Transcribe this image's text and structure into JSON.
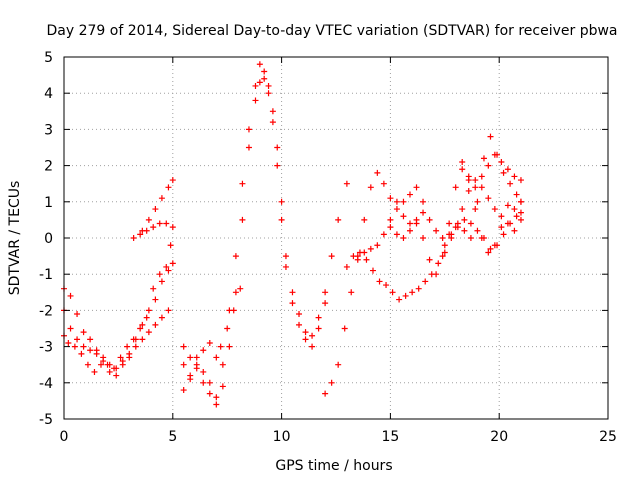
{
  "chart_data": {
    "type": "scatter",
    "title": "Day 279 of 2014, Sidereal Day-to-day VTEC variation (SDTVAR) for receiver pbwa",
    "xlabel": "GPS time / hours",
    "ylabel": "SDTVAR / TECUs",
    "xlim": [
      0,
      25
    ],
    "ylim": [
      -5,
      5
    ],
    "xticks": [
      0,
      5,
      10,
      15,
      20,
      25
    ],
    "yticks": [
      -5,
      -4,
      -3,
      -2,
      -1,
      0,
      1,
      2,
      3,
      4,
      5
    ],
    "grid": true,
    "marker": "+",
    "color": "#ff0000",
    "series": [
      {
        "x": [
          0.0,
          0.3,
          0.6,
          0.9,
          1.2,
          1.5,
          1.8,
          2.1,
          2.4,
          2.7,
          3.0,
          3.3,
          3.6,
          3.9,
          4.2,
          4.5,
          4.8,
          5.0
        ],
        "y": [
          -1.4,
          -1.6,
          -2.1,
          -2.6,
          -2.8,
          -3.1,
          -3.4,
          -3.7,
          -3.8,
          -3.5,
          -3.3,
          -2.8,
          -2.4,
          -2.0,
          -1.7,
          -1.2,
          -0.9,
          -0.7
        ]
      },
      {
        "x": [
          0.0,
          0.3,
          0.6,
          0.9,
          1.2,
          1.5,
          1.8,
          2.1,
          2.4,
          2.7,
          3.0,
          3.3,
          3.6,
          3.9,
          4.2,
          4.5,
          4.8
        ],
        "y": [
          -2.0,
          -2.5,
          -2.8,
          -3.0,
          -3.1,
          -3.2,
          -3.3,
          -3.5,
          -3.6,
          -3.4,
          -3.2,
          -3.0,
          -2.8,
          -2.6,
          -2.4,
          -2.2,
          -2.0
        ]
      },
      {
        "x": [
          0.0,
          0.2,
          0.5,
          0.8,
          1.1,
          1.4,
          1.7,
          2.0,
          2.3,
          2.6,
          2.9,
          3.2,
          3.5,
          3.8,
          4.1,
          4.4,
          4.7,
          4.9
        ],
        "y": [
          -2.7,
          -2.9,
          -3.0,
          -3.2,
          -3.5,
          -3.7,
          -3.5,
          -3.5,
          -3.6,
          -3.3,
          -3.0,
          -2.8,
          -2.5,
          -2.2,
          -1.4,
          -1.0,
          -0.8,
          -0.2
        ]
      },
      {
        "x": [
          3.2,
          3.5,
          3.8,
          4.1,
          4.4,
          4.7,
          5.0
        ],
        "y": [
          0.0,
          0.1,
          0.2,
          0.3,
          0.4,
          0.4,
          0.3
        ]
      },
      {
        "x": [
          3.6,
          3.9,
          4.2,
          4.5,
          4.8,
          5.0
        ],
        "y": [
          0.2,
          0.5,
          0.8,
          1.1,
          1.4,
          1.6
        ]
      },
      {
        "x": [
          5.5,
          5.8,
          6.1,
          6.4,
          6.7,
          7.0,
          7.3,
          7.6,
          7.9,
          8.2,
          8.5,
          8.8,
          9.0,
          9.2,
          9.4,
          9.6,
          9.8,
          10.0,
          10.2,
          10.5,
          10.8,
          11.1,
          11.4,
          11.7,
          12.0,
          12.3,
          12.6,
          13.0
        ],
        "y": [
          -3.0,
          -3.3,
          -3.6,
          -4.0,
          -4.3,
          -4.6,
          -3.5,
          -2.0,
          -0.5,
          1.5,
          3.0,
          4.2,
          4.8,
          4.6,
          4.2,
          3.5,
          2.5,
          1.0,
          -0.5,
          -1.5,
          -2.1,
          -2.6,
          -3.0,
          -2.5,
          -1.5,
          -0.5,
          0.5,
          1.5
        ]
      },
      {
        "x": [
          5.5,
          5.8,
          6.1,
          6.4,
          6.7,
          7.0,
          7.3,
          7.6,
          7.9,
          8.2,
          8.5,
          8.8,
          9.0,
          9.2,
          9.4,
          9.6,
          9.8,
          10.0,
          10.2,
          10.5,
          10.8,
          11.1,
          11.4,
          11.7,
          12.0
        ],
        "y": [
          -4.2,
          -3.8,
          -3.5,
          -3.7,
          -4.0,
          -4.4,
          -4.1,
          -3.0,
          -1.5,
          0.5,
          2.5,
          3.8,
          4.3,
          4.4,
          4.0,
          3.2,
          2.0,
          0.5,
          -0.8,
          -1.8,
          -2.4,
          -2.8,
          -2.7,
          -2.2,
          -1.8
        ]
      },
      {
        "x": [
          5.5,
          5.8,
          6.1,
          6.4,
          6.7,
          7.0,
          7.2,
          7.5,
          7.8,
          8.1
        ],
        "y": [
          -3.5,
          -3.9,
          -3.3,
          -3.1,
          -2.9,
          -3.3,
          -3.0,
          -2.5,
          -2.0,
          -1.4
        ]
      },
      {
        "x": [
          12.0,
          12.3,
          12.6,
          12.9,
          13.2,
          13.5,
          13.8,
          14.1,
          14.4,
          14.7,
          15.0,
          15.3,
          15.6,
          15.9,
          16.2,
          16.5
        ],
        "y": [
          -4.3,
          -4.0,
          -3.5,
          -2.5,
          -1.5,
          -0.5,
          0.5,
          1.4,
          1.8,
          1.5,
          1.1,
          1.0,
          1.0,
          1.2,
          1.4,
          1.0
        ]
      },
      {
        "x": [
          13.0,
          13.3,
          13.6,
          13.9,
          14.2,
          14.5,
          14.8,
          15.1,
          15.4,
          15.7,
          16.0,
          16.3,
          16.6,
          16.9,
          17.2,
          17.5,
          17.8,
          18.1,
          18.4,
          18.7,
          19.0,
          19.3,
          19.6,
          19.9,
          20.2,
          20.5,
          20.8,
          21.0
        ],
        "y": [
          -0.8,
          -0.5,
          -0.4,
          -0.6,
          -0.9,
          -1.2,
          -1.3,
          -1.5,
          -1.7,
          -1.6,
          -1.5,
          -1.4,
          -1.2,
          -1.0,
          -0.7,
          -0.4,
          0.0,
          0.3,
          0.5,
          0.4,
          0.2,
          0.0,
          -0.3,
          -0.2,
          0.1,
          0.4,
          0.6,
          0.7
        ]
      },
      {
        "x": [
          13.5,
          13.8,
          14.1,
          14.4,
          14.7,
          15.0,
          15.3,
          15.6,
          15.9,
          16.2,
          16.5,
          16.8,
          17.1,
          17.4,
          17.7,
          18.0,
          18.3,
          18.6,
          18.9,
          19.2,
          19.5,
          19.8,
          20.1,
          20.4,
          20.7,
          21.0
        ],
        "y": [
          -0.6,
          -0.4,
          -0.3,
          -0.2,
          0.1,
          0.5,
          0.8,
          0.6,
          0.4,
          0.5,
          0.7,
          0.5,
          0.2,
          0.0,
          0.1,
          0.3,
          0.8,
          1.3,
          1.6,
          1.4,
          1.1,
          0.8,
          0.6,
          0.4,
          0.2,
          0.5
        ]
      },
      {
        "x": [
          15.0,
          15.3,
          15.6,
          15.9,
          16.2,
          16.5,
          16.8,
          17.1,
          17.4,
          17.7,
          18.0,
          18.3,
          18.6,
          18.9,
          19.2,
          19.5,
          19.8,
          20.1,
          20.4,
          20.7,
          21.0
        ],
        "y": [
          0.3,
          0.1,
          0.0,
          0.2,
          0.4,
          0.0,
          -0.6,
          -1.0,
          -0.5,
          0.4,
          1.4,
          2.1,
          1.6,
          0.8,
          0.0,
          -0.4,
          -0.2,
          0.3,
          0.9,
          0.8,
          1.0
        ]
      },
      {
        "x": [
          17.5,
          17.8,
          18.1,
          18.4,
          18.7,
          19.0,
          19.3,
          19.6,
          19.9,
          20.2,
          20.5,
          20.8,
          21.0
        ],
        "y": [
          -0.2,
          0.1,
          0.4,
          0.2,
          0.0,
          1.0,
          2.2,
          2.8,
          2.3,
          1.8,
          1.5,
          1.2,
          1.0
        ]
      },
      {
        "x": [
          18.3,
          18.6,
          18.9,
          19.2,
          19.5,
          19.8,
          20.1,
          20.4,
          20.7,
          21.0
        ],
        "y": [
          1.9,
          1.7,
          1.4,
          1.7,
          2.0,
          2.3,
          2.1,
          1.9,
          1.7,
          1.6
        ]
      }
    ]
  }
}
